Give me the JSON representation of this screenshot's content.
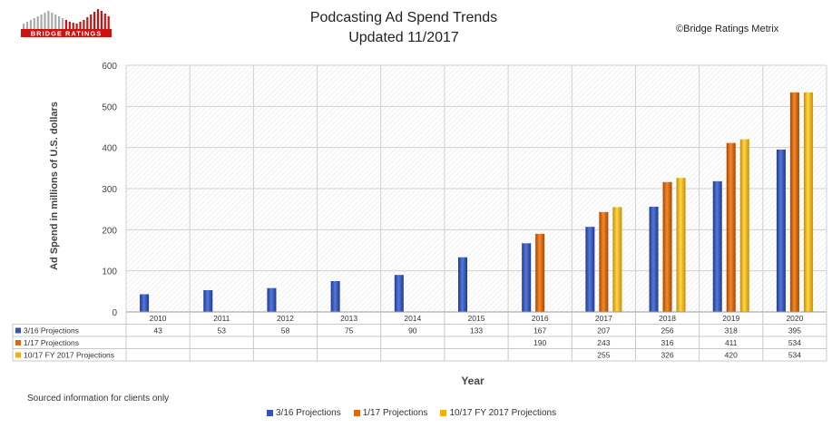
{
  "header": {
    "title_line1": "Podcasting Ad Spend Trends",
    "title_line2": "Updated 11/2017",
    "copyright": "©Bridge Ratings Metrix",
    "logo_text": "BRIDGE RATINGS"
  },
  "footer": {
    "note": "Sourced information for clients only"
  },
  "chart_data": {
    "type": "bar",
    "title": "Podcasting Ad Spend Trends",
    "subtitle": "Updated 11/2017",
    "xlabel": "Year",
    "ylabel": "Ad Spend in millions of U.S. dollars",
    "ylim": [
      0,
      600
    ],
    "yticks": [
      0,
      100,
      200,
      300,
      400,
      500,
      600
    ],
    "grid": true,
    "legend_position": "bottom",
    "categories": [
      "2010",
      "2011",
      "2012",
      "2013",
      "2014",
      "2015",
      "2016",
      "2017",
      "2018",
      "2019",
      "2020"
    ],
    "series": [
      {
        "name": "3/16 Projections",
        "color": "#3355bb",
        "values": [
          43,
          53,
          58,
          75,
          90,
          133,
          167,
          207,
          256,
          318,
          395
        ]
      },
      {
        "name": "1/17 Projections",
        "color": "#e06a0a",
        "values": [
          null,
          null,
          null,
          null,
          null,
          null,
          190,
          243,
          316,
          411,
          534
        ]
      },
      {
        "name": "10/17 FY 2017 Projections",
        "color": "#f0b400",
        "values": [
          null,
          null,
          null,
          null,
          null,
          null,
          null,
          255,
          326,
          420,
          534
        ]
      }
    ]
  }
}
